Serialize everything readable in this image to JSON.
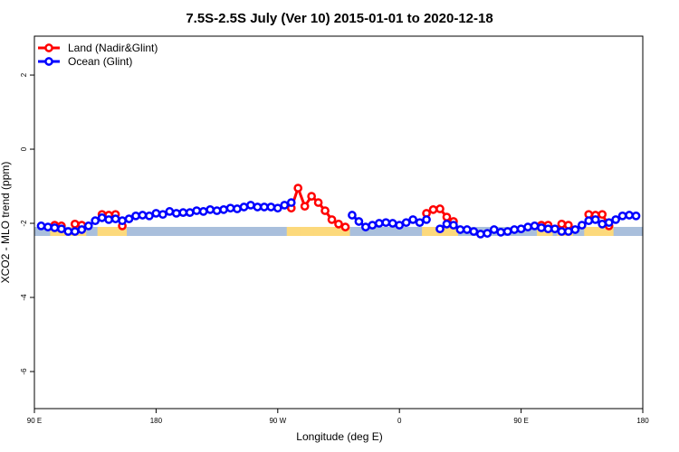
{
  "chart_data": {
    "type": "line",
    "title": "7.5S-2.5S July (Ver 10)   2015-01-01 to 2020-12-18",
    "x_label": "Longitude (deg E)",
    "y_label": "XCO2 - MLO trend (ppm)",
    "xlim": [
      90,
      540
    ],
    "ylim": [
      -7,
      3.05
    ],
    "xticks": [
      {
        "value": 90,
        "label": "90 E"
      },
      180,
      {
        "value": 270,
        "label": "90 W"
      },
      {
        "value": 360,
        "label": "0"
      },
      {
        "value": 450,
        "label": "90 E"
      },
      {
        "value": 540,
        "label": "180"
      }
    ],
    "yticks": [
      -6,
      -4,
      -2,
      0,
      2
    ],
    "legend": "top-left",
    "x": [
      95,
      100,
      105,
      110,
      115,
      120,
      125,
      130,
      135,
      140,
      145,
      150,
      155,
      160,
      165,
      170,
      175,
      180,
      185,
      190,
      195,
      200,
      205,
      210,
      215,
      220,
      225,
      230,
      235,
      240,
      245,
      250,
      255,
      260,
      265,
      270,
      275,
      280,
      285,
      290,
      295,
      300,
      305,
      310,
      315,
      320,
      325,
      330,
      335,
      340,
      345,
      350,
      355,
      360,
      365,
      370,
      375,
      380,
      385,
      390,
      395,
      400,
      405,
      410,
      415,
      420,
      425,
      430,
      435,
      440,
      445,
      450,
      455,
      460,
      465,
      470,
      475,
      480,
      485,
      490,
      495,
      500,
      505,
      510,
      515,
      520,
      525,
      530,
      535
    ],
    "series": [
      {
        "name": "Land (Nadir&Glint)",
        "color": "#ff0000",
        "values": [
          null,
          null,
          -2.05,
          -2.07,
          null,
          -2.02,
          -2.05,
          null,
          null,
          -1.76,
          -1.78,
          -1.76,
          -2.07,
          null,
          null,
          null,
          null,
          null,
          null,
          null,
          null,
          null,
          null,
          null,
          null,
          null,
          null,
          null,
          null,
          null,
          null,
          null,
          null,
          null,
          null,
          null,
          null,
          -1.59,
          -1.05,
          -1.54,
          -1.27,
          -1.44,
          -1.66,
          -1.9,
          -2.02,
          -2.1,
          null,
          null,
          null,
          null,
          null,
          null,
          null,
          null,
          null,
          null,
          null,
          -1.73,
          -1.63,
          -1.61,
          -1.83,
          -1.95,
          null,
          null,
          null,
          null,
          null,
          null,
          null,
          null,
          null,
          null,
          null,
          null,
          -2.05,
          -2.05,
          null,
          -2.02,
          -2.05,
          null,
          null,
          -1.76,
          -1.78,
          -1.76,
          -2.07,
          null,
          null,
          null,
          null
        ]
      },
      {
        "name": "Ocean (Glint)",
        "color": "#0000ff",
        "values": [
          -2.07,
          -2.1,
          -2.12,
          -2.15,
          -2.22,
          -2.22,
          -2.17,
          -2.07,
          -1.93,
          -1.85,
          -1.9,
          -1.88,
          -1.93,
          -1.88,
          -1.8,
          -1.78,
          -1.8,
          -1.73,
          -1.76,
          -1.68,
          -1.73,
          -1.71,
          -1.71,
          -1.66,
          -1.68,
          -1.63,
          -1.66,
          -1.63,
          -1.59,
          -1.61,
          -1.56,
          -1.51,
          -1.56,
          -1.56,
          -1.56,
          -1.59,
          -1.51,
          -1.44,
          null,
          null,
          null,
          null,
          null,
          null,
          null,
          null,
          -1.78,
          -1.95,
          -2.1,
          -2.05,
          -2.0,
          -1.98,
          -2.0,
          -2.05,
          -1.98,
          -1.9,
          -1.98,
          -1.9,
          null,
          -2.15,
          -2.02,
          -2.05,
          -2.17,
          -2.17,
          -2.22,
          -2.29,
          -2.27,
          -2.17,
          -2.24,
          -2.22,
          -2.17,
          -2.15,
          -2.1,
          -2.07,
          -2.12,
          -2.15,
          -2.15,
          -2.22,
          -2.22,
          -2.17,
          -2.05,
          -1.93,
          -1.9,
          -2.02,
          -1.98,
          -1.9,
          -1.8,
          -1.78,
          -1.8
        ]
      }
    ]
  }
}
